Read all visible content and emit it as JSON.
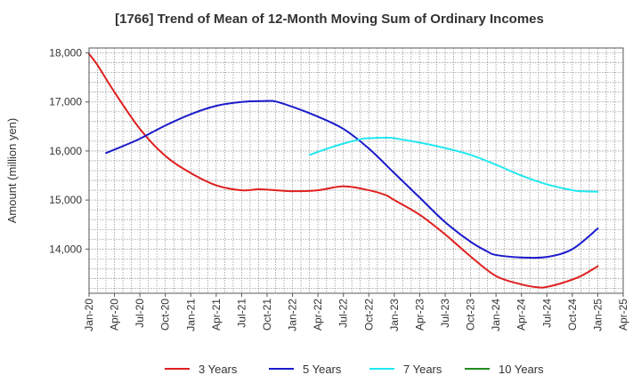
{
  "chart_data": {
    "type": "line",
    "title": "[1766]  Trend of Mean of 12-Month Moving Sum of Ordinary Incomes",
    "xlabel": "",
    "ylabel": "Amount (million yen)",
    "ylim": [
      13100,
      18100
    ],
    "y_ticks": [
      14000,
      15000,
      16000,
      17000,
      18000
    ],
    "y_tick_labels": [
      "14,000",
      "15,000",
      "16,000",
      "17,000",
      "18,000"
    ],
    "x_ticks": [
      0,
      3,
      6,
      9,
      12,
      15,
      18,
      21,
      24,
      27,
      30,
      33,
      36,
      39,
      42,
      45,
      48,
      51,
      54,
      57,
      60,
      63
    ],
    "x_tick_labels": [
      "Jan-20",
      "Apr-20",
      "Jul-20",
      "Oct-20",
      "Jan-21",
      "Apr-21",
      "Jul-21",
      "Oct-21",
      "Jan-22",
      "Apr-22",
      "Jul-22",
      "Oct-22",
      "Jan-23",
      "Apr-23",
      "Jul-23",
      "Oct-23",
      "Jan-24",
      "Apr-24",
      "Jul-24",
      "Oct-24",
      "Jan-25",
      "Apr-25"
    ],
    "x_note": "x = months since Jan-20",
    "grid": true,
    "legend_position": "bottom",
    "series": [
      {
        "name": "3 Years",
        "color": "#e02020",
        "x": [
          0,
          1,
          3,
          6,
          9,
          12,
          15,
          18,
          20,
          22,
          24,
          27,
          30,
          33,
          35,
          36,
          39,
          42,
          45,
          48,
          51,
          53,
          54,
          56,
          58,
          60
        ],
        "y": [
          17980,
          17750,
          17200,
          16450,
          15900,
          15550,
          15300,
          15200,
          15220,
          15200,
          15180,
          15200,
          15280,
          15200,
          15100,
          15000,
          14700,
          14300,
          13850,
          13450,
          13280,
          13220,
          13230,
          13320,
          13450,
          13650
        ]
      },
      {
        "name": "5 Years",
        "color": "#1a1acc",
        "x": [
          2,
          4,
          6,
          9,
          12,
          15,
          18,
          21,
          22,
          24,
          27,
          30,
          33,
          36,
          39,
          42,
          45,
          47,
          48,
          51,
          54,
          57,
          60
        ],
        "y": [
          15960,
          16100,
          16250,
          16520,
          16750,
          16920,
          17000,
          17020,
          17010,
          16900,
          16700,
          16450,
          16050,
          15550,
          15050,
          14550,
          14150,
          13950,
          13880,
          13830,
          13840,
          14000,
          14420
        ]
      },
      {
        "name": "7 Years",
        "color": "#20e8f0",
        "x": [
          26,
          29,
          32,
          33,
          35,
          36,
          39,
          42,
          45,
          48,
          51,
          54,
          57,
          58,
          60
        ],
        "y": [
          15920,
          16100,
          16240,
          16260,
          16270,
          16260,
          16170,
          16060,
          15920,
          15720,
          15500,
          15320,
          15200,
          15180,
          15170
        ]
      },
      {
        "name": "10 Years",
        "color": "#1e8c1e",
        "x": [],
        "y": []
      }
    ]
  }
}
